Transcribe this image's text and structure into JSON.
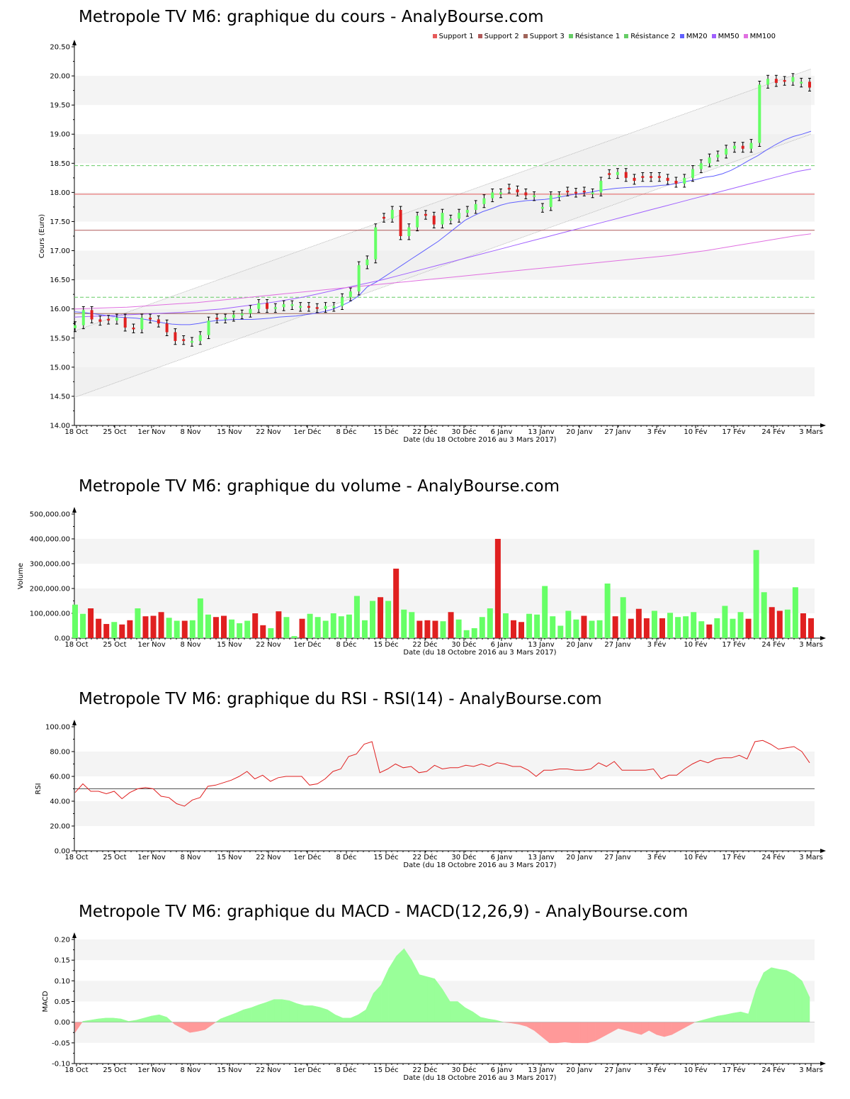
{
  "colors": {
    "up": "#66ff66",
    "down": "#e02020",
    "support1": "#e65a5a",
    "support2": "#b05a5a",
    "support3": "#a0645a",
    "resistance": "#66cc66",
    "mm20": "#6060ff",
    "mm50": "#a060ff",
    "mm100": "#e070e0",
    "macd_pos": "#99ff99",
    "macd_neg": "#ff9999",
    "band": "#f4f4f4"
  },
  "x_axis": {
    "ticks": [
      "18 Oct",
      "25 Oct",
      "1er Nov",
      "8 Nov",
      "15 Nov",
      "22 Nov",
      "1er Déc",
      "8 Déc",
      "15 Déc",
      "22 Déc",
      "30 Déc",
      "6 Janv",
      "13 Janv",
      "20 Janv",
      "27 Janv",
      "3 Fév",
      "10 Fév",
      "17 Fév",
      "24 Fév",
      "3 Mars"
    ],
    "label": "Date (du 18 Octobre 2016 au 3 Mars 2017)"
  },
  "price_panel": {
    "title": "Metropole TV M6: graphique du cours - AnalyBourse.com",
    "ylabel": "Cours (Euro)",
    "legend": [
      {
        "label": "Support 1",
        "color": "#e65a5a"
      },
      {
        "label": "Support 2",
        "color": "#b05a5a"
      },
      {
        "label": "Support 3",
        "color": "#a0645a"
      },
      {
        "label": "Résistance 1",
        "color": "#66cc66"
      },
      {
        "label": "Résistance 2",
        "color": "#66cc66"
      },
      {
        "label": "MM20",
        "color": "#6060ff"
      },
      {
        "label": "MM50",
        "color": "#a060ff"
      },
      {
        "label": "MM100",
        "color": "#e070e0"
      }
    ]
  },
  "volume_panel": {
    "title": "Metropole TV M6: graphique du volume - AnalyBourse.com",
    "ylabel": "Volume"
  },
  "rsi_panel": {
    "title": "Metropole TV M6: graphique du RSI - RSI(14) - AnalyBourse.com",
    "ylabel": "RSI"
  },
  "macd_panel": {
    "title": "Metropole TV M6: graphique du MACD - MACD(12,26,9) - AnalyBourse.com",
    "ylabel": "MACD"
  },
  "chart_data": [
    {
      "type": "candlestick",
      "title": "Metropole TV M6: graphique du cours - AnalyBourse.com",
      "xlabel": "Date (du 18 Octobre 2016 au 3 Mars 2017)",
      "ylabel": "Cours (Euro)",
      "ylim": [
        14.0,
        20.5
      ],
      "yticks": [
        "14.00",
        "14.50",
        "15.00",
        "15.50",
        "16.00",
        "16.50",
        "17.00",
        "17.50",
        "18.00",
        "18.50",
        "19.00",
        "19.50",
        "20.00",
        "20.50"
      ],
      "close": [
        15.72,
        15.98,
        15.82,
        15.78,
        15.8,
        15.85,
        15.68,
        15.65,
        15.85,
        15.82,
        15.75,
        15.6,
        15.45,
        15.45,
        15.45,
        15.55,
        15.8,
        15.82,
        15.85,
        15.9,
        15.92,
        16.0,
        16.1,
        16.0,
        16.03,
        16.08,
        16.08,
        16.05,
        16.02,
        16.0,
        16.05,
        16.05,
        16.2,
        16.3,
        16.75,
        16.85,
        17.4,
        17.55,
        17.7,
        17.25,
        17.4,
        17.6,
        17.6,
        17.45,
        17.65,
        17.55,
        17.65,
        17.7,
        17.8,
        17.9,
        18.0,
        18.0,
        18.05,
        18.0,
        17.95,
        17.95,
        17.75,
        17.95,
        17.95,
        18.0,
        17.98,
        18.0,
        18.0,
        18.2,
        18.3,
        18.35,
        18.25,
        18.2,
        18.25,
        18.25,
        18.25,
        18.2,
        18.15,
        18.25,
        18.4,
        18.5,
        18.6,
        18.65,
        18.75,
        18.8,
        18.75,
        18.85,
        19.85,
        19.95,
        19.88,
        19.9,
        19.98,
        19.9,
        19.8
      ],
      "color": [
        "up",
        "up",
        "down",
        "down",
        "down",
        "up",
        "down",
        "down",
        "up",
        "down",
        "down",
        "down",
        "down",
        "down",
        "up",
        "up",
        "up",
        "down",
        "up",
        "up",
        "up",
        "up",
        "up",
        "down",
        "up",
        "up",
        "up",
        "up",
        "down",
        "down",
        "up",
        "up",
        "up",
        "up",
        "up",
        "up",
        "up",
        "down",
        "up",
        "down",
        "up",
        "up",
        "down",
        "down",
        "up",
        "up",
        "up",
        "up",
        "up",
        "up",
        "up",
        "up",
        "down",
        "down",
        "down",
        "up",
        "up",
        "up",
        "up",
        "down",
        "down",
        "down",
        "up",
        "up",
        "down",
        "up",
        "down",
        "down",
        "down",
        "down",
        "down",
        "down",
        "down",
        "up",
        "up",
        "up",
        "up",
        "up",
        "up",
        "up",
        "down",
        "up",
        "up",
        "up",
        "down",
        "down",
        "up",
        "up",
        "down"
      ],
      "series": [
        {
          "name": "MM20",
          "values": [
            15.95,
            15.94,
            15.92,
            15.9,
            15.88,
            15.86,
            15.85,
            15.84,
            15.82,
            15.79,
            15.76,
            15.74,
            15.73,
            15.73,
            15.75,
            15.78,
            15.8,
            15.81,
            15.82,
            15.82,
            15.82,
            15.83,
            15.84,
            15.86,
            15.87,
            15.88,
            15.9,
            15.92,
            15.95,
            15.99,
            16.05,
            16.12,
            16.22,
            16.38,
            16.46,
            16.56,
            16.66,
            16.76,
            16.86,
            16.96,
            17.06,
            17.16,
            17.28,
            17.4,
            17.52,
            17.6,
            17.67,
            17.72,
            17.78,
            17.82,
            17.84,
            17.86,
            17.87,
            17.88,
            17.9,
            17.93,
            17.96,
            17.98,
            18.0,
            18.03,
            18.05,
            18.07,
            18.08,
            18.09,
            18.1,
            18.1,
            18.12,
            18.13,
            18.16,
            18.19,
            18.22,
            18.26,
            18.28,
            18.32,
            18.38,
            18.46,
            18.55,
            18.63,
            18.73,
            18.82,
            18.9,
            18.96,
            19.0,
            19.05
          ]
        },
        {
          "name": "MM50",
          "values": [
            15.86,
            15.87,
            15.88,
            15.89,
            15.9,
            15.91,
            15.92,
            15.93,
            15.94,
            15.96,
            15.98,
            16.0,
            16.03,
            16.06,
            16.09,
            16.12,
            16.16,
            16.2,
            16.25,
            16.3,
            16.35,
            16.4,
            16.45,
            16.5,
            16.56,
            16.62,
            16.68,
            16.74,
            16.8,
            16.86,
            16.92,
            16.98,
            17.04,
            17.1,
            17.16,
            17.22,
            17.28,
            17.34,
            17.4,
            17.46,
            17.52,
            17.58,
            17.64,
            17.7,
            17.76,
            17.82,
            17.88,
            17.94,
            18.0,
            18.06,
            18.12,
            18.18,
            18.24,
            18.3,
            18.36,
            18.4
          ]
        },
        {
          "name": "MM100",
          "values": [
            16.0,
            16.01,
            16.02,
            16.03,
            16.05,
            16.07,
            16.09,
            16.11,
            16.14,
            16.17,
            16.2,
            16.23,
            16.26,
            16.29,
            16.32,
            16.35,
            16.38,
            16.41,
            16.44,
            16.47,
            16.5,
            16.53,
            16.56,
            16.59,
            16.62,
            16.65,
            16.68,
            16.71,
            16.74,
            16.77,
            16.8,
            16.83,
            16.86,
            16.89,
            16.92,
            16.96,
            17.0,
            17.05,
            17.1,
            17.15,
            17.2,
            17.25,
            17.29
          ]
        }
      ],
      "support_levels": [
        17.97,
        17.35,
        15.92
      ],
      "resistance_levels": [
        18.46,
        16.2
      ]
    },
    {
      "type": "bar",
      "title": "Metropole TV M6: graphique du volume - AnalyBourse.com",
      "xlabel": "Date (du 18 Octobre 2016 au 3 Mars 2017)",
      "ylabel": "Volume",
      "ylim": [
        0,
        500000
      ],
      "yticks": [
        "0.00",
        "100,000.00",
        "200,000.00",
        "300,000.00",
        "400,000.00",
        "500,000.00"
      ],
      "values": [
        135000,
        98000,
        120000,
        78000,
        57000,
        65000,
        55000,
        72000,
        120000,
        88000,
        90000,
        105000,
        82000,
        70000,
        70000,
        72000,
        160000,
        95000,
        85000,
        90000,
        75000,
        60000,
        70000,
        100000,
        52000,
        40000,
        108000,
        85000,
        8000,
        78000,
        98000,
        85000,
        70000,
        100000,
        88000,
        95000,
        170000,
        72000,
        150000,
        165000,
        150000,
        280000,
        115000,
        105000,
        70000,
        72000,
        70000,
        68000,
        105000,
        75000,
        32000,
        40000,
        85000,
        120000,
        400000,
        100000,
        72000,
        65000,
        98000,
        95000,
        210000,
        88000,
        50000,
        110000,
        75000,
        90000,
        70000,
        72000,
        220000,
        88000,
        165000,
        78000,
        118000,
        80000,
        110000,
        80000,
        102000,
        85000,
        88000,
        105000,
        68000,
        55000,
        80000,
        130000,
        78000,
        105000,
        78000,
        355000,
        185000,
        125000,
        110000,
        115000,
        205000,
        100000,
        80000
      ],
      "color": [
        "up",
        "up",
        "down",
        "down",
        "down",
        "up",
        "down",
        "down",
        "up",
        "down",
        "down",
        "down",
        "up",
        "up",
        "down",
        "up",
        "up",
        "up",
        "down",
        "down",
        "up",
        "up",
        "up",
        "down",
        "down",
        "up",
        "down",
        "up",
        "up",
        "down",
        "up",
        "up",
        "up",
        "up",
        "up",
        "up",
        "up",
        "up",
        "up",
        "down",
        "up",
        "down",
        "up",
        "up",
        "down",
        "down",
        "down",
        "up",
        "down",
        "up",
        "up",
        "up",
        "up",
        "up",
        "down",
        "up",
        "down",
        "down",
        "up",
        "up",
        "up",
        "up",
        "up",
        "up",
        "up",
        "down",
        "up",
        "up",
        "up",
        "down",
        "up",
        "down",
        "down",
        "down",
        "up",
        "down",
        "up",
        "up",
        "up",
        "up",
        "up",
        "down",
        "up",
        "up",
        "up",
        "up",
        "down",
        "up",
        "up",
        "down",
        "down",
        "up",
        "up",
        "down",
        "down"
      ]
    },
    {
      "type": "line",
      "title": "Metropole TV M6: graphique du RSI - RSI(14) - AnalyBourse.com",
      "xlabel": "Date (du 18 Octobre 2016 au 3 Mars 2017)",
      "ylabel": "RSI",
      "ylim": [
        0,
        100
      ],
      "yticks": [
        "0.00",
        "20.00",
        "40.00",
        "60.00",
        "80.00",
        "100.00"
      ],
      "reference_line": 50,
      "values": [
        47,
        54,
        48,
        48,
        46,
        48,
        42,
        47,
        50,
        51,
        50,
        44,
        43,
        38,
        36,
        41,
        43,
        52,
        53,
        55,
        57,
        60,
        64,
        58,
        61,
        56,
        59,
        60,
        60,
        60,
        53,
        54,
        58,
        64,
        66,
        76,
        78,
        86,
        88,
        63,
        66,
        70,
        67,
        68,
        63,
        64,
        69,
        66,
        67,
        67,
        69,
        68,
        70,
        68,
        71,
        70,
        68,
        68,
        65,
        60,
        65,
        65,
        66,
        66,
        65,
        65,
        66,
        71,
        68,
        72,
        65,
        65,
        65,
        65,
        66,
        58,
        61,
        61,
        66,
        70,
        73,
        71,
        74,
        75,
        75,
        77,
        74,
        88,
        89,
        86,
        82,
        83,
        84,
        80,
        71
      ],
      "color": "#e02020"
    },
    {
      "type": "area",
      "title": "Metropole TV M6: graphique du MACD - MACD(12,26,9) - AnalyBourse.com",
      "xlabel": "Date (du 18 Octobre 2016 au 3 Mars 2017)",
      "ylabel": "MACD",
      "ylim": [
        -0.1,
        0.2
      ],
      "yticks": [
        "-0.10",
        "-0.05",
        "0.00",
        "0.05",
        "0.10",
        "0.15",
        "0.20"
      ],
      "values": [
        -0.025,
        0.002,
        0.005,
        0.008,
        0.01,
        0.01,
        0.008,
        0.002,
        0.005,
        0.01,
        0.015,
        0.018,
        0.012,
        -0.005,
        -0.015,
        -0.025,
        -0.022,
        -0.018,
        -0.005,
        0.008,
        0.015,
        0.022,
        0.03,
        0.035,
        0.042,
        0.048,
        0.055,
        0.055,
        0.052,
        0.045,
        0.04,
        0.04,
        0.036,
        0.03,
        0.018,
        0.01,
        0.01,
        0.018,
        0.03,
        0.07,
        0.09,
        0.13,
        0.16,
        0.178,
        0.15,
        0.115,
        0.11,
        0.105,
        0.08,
        0.05,
        0.05,
        0.035,
        0.025,
        0.012,
        0.008,
        0.005,
        0.0,
        -0.002,
        -0.005,
        -0.01,
        -0.02,
        -0.035,
        -0.05,
        -0.05,
        -0.048,
        -0.05,
        -0.05,
        -0.05,
        -0.045,
        -0.035,
        -0.025,
        -0.015,
        -0.02,
        -0.025,
        -0.03,
        -0.02,
        -0.03,
        -0.035,
        -0.03,
        -0.02,
        -0.01,
        0.0,
        0.005,
        0.01,
        0.015,
        0.018,
        0.022,
        0.025,
        0.02,
        0.08,
        0.12,
        0.132,
        0.128,
        0.125,
        0.115,
        0.1,
        0.06
      ]
    }
  ]
}
